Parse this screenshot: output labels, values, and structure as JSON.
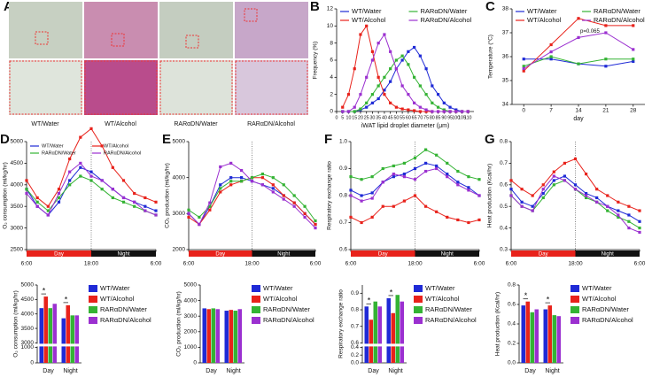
{
  "panel_a": {
    "panel": "A",
    "labels": [
      "WT/Water",
      "WT/Alcohol",
      "RARαDN/Water",
      "RARαDN/Alcohol"
    ]
  },
  "chart_data": [
    {
      "type": "line",
      "panel": "B",
      "x_label": "iWAT lipid droplet diameter (μm)",
      "y_label": "Frequency (%)",
      "x": [
        5,
        10,
        15,
        20,
        25,
        30,
        35,
        40,
        45,
        50,
        55,
        60,
        65,
        70,
        75,
        80,
        85,
        90,
        95,
        100,
        105,
        110
      ],
      "xlim": [
        0,
        115
      ],
      "ylim": [
        0,
        12
      ],
      "xticks": [
        0,
        5,
        10,
        15,
        20,
        25,
        30,
        35,
        40,
        45,
        50,
        55,
        60,
        65,
        70,
        75,
        80,
        85,
        90,
        95,
        100,
        105,
        110
      ],
      "yticks": [
        0,
        2,
        4,
        6,
        8,
        10,
        12
      ],
      "legend": "top",
      "series": [
        {
          "name": "WT/Water",
          "color": "#1f2ad6",
          "values": [
            0,
            0,
            0,
            0.2,
            0.5,
            1,
            1.5,
            2.5,
            3.5,
            5,
            6,
            7,
            7.5,
            6.5,
            5,
            3,
            2,
            1,
            0.5,
            0.2,
            0,
            0
          ]
        },
        {
          "name": "RARαDN/Water",
          "color": "#34b334",
          "values": [
            0,
            0,
            0,
            0.3,
            1,
            2,
            3,
            4,
            5,
            6,
            6.5,
            5.5,
            4,
            3,
            2,
            1,
            0.5,
            0.2,
            0,
            0,
            0,
            0
          ]
        },
        {
          "name": "WT/Alcohol",
          "color": "#e8221b",
          "values": [
            0.5,
            2,
            5,
            9,
            10,
            7,
            4,
            2,
            1,
            0.5,
            0.3,
            0.2,
            0.1,
            0,
            0,
            0,
            0,
            0,
            0,
            0,
            0,
            0
          ]
        },
        {
          "name": "RARαDN/Alcohol",
          "color": "#9b30d0",
          "values": [
            0,
            0,
            0.5,
            2,
            4,
            6,
            8,
            9,
            7,
            5,
            3,
            2,
            1,
            0.5,
            0.2,
            0,
            0,
            0,
            0,
            0,
            0,
            0
          ]
        }
      ]
    },
    {
      "type": "line",
      "panel": "C",
      "x_label": "day",
      "y_label": "Temperature (°C)",
      "x": [
        0,
        7,
        14,
        21,
        28
      ],
      "xlim": [
        -3,
        31
      ],
      "ylim": [
        34,
        38
      ],
      "xticks": [
        0,
        7,
        14,
        21,
        28
      ],
      "yticks": [
        34,
        35,
        36,
        37,
        38
      ],
      "legend": "top",
      "annotation": "p=0.065",
      "series": [
        {
          "name": "WT/Water",
          "color": "#1f2ad6",
          "values": [
            35.9,
            35.9,
            35.7,
            35.6,
            35.8
          ]
        },
        {
          "name": "RARαDN/Water",
          "color": "#34b334",
          "values": [
            35.6,
            36.0,
            35.7,
            35.9,
            35.9
          ]
        },
        {
          "name": "WT/Alcohol",
          "color": "#e8221b",
          "values": [
            35.4,
            36.5,
            37.6,
            37.3,
            37.3
          ]
        },
        {
          "name": "RARαDN/Alcohol",
          "color": "#9b30d0",
          "values": [
            35.5,
            36.2,
            36.8,
            37.0,
            36.3
          ]
        }
      ]
    },
    {
      "type": "line",
      "panel": "D",
      "y_label": "O₂ consumption (ml/kg/hr)",
      "x": [
        0,
        2,
        4,
        6,
        8,
        10,
        12,
        14,
        16,
        18,
        20,
        22,
        24
      ],
      "xlim": [
        0,
        24
      ],
      "ylim": [
        2500,
        5000
      ],
      "xticks": [
        {
          "value": 0,
          "label": "6:00"
        },
        {
          "value": 12,
          "label": "18:00"
        },
        {
          "value": 24,
          "label": "6:00"
        }
      ],
      "yticks": [
        2500,
        3000,
        3500,
        4000,
        4500,
        5000
      ],
      "legend": "inside",
      "phases": [
        {
          "label": "Day",
          "color": "#e8221b"
        },
        {
          "label": "Night",
          "color": "#111111"
        }
      ],
      "series": [
        {
          "name": "WT/Water",
          "color": "#1f2ad6",
          "values": [
            3900,
            3500,
            3300,
            3600,
            4100,
            4400,
            4300,
            4100,
            3900,
            3700,
            3600,
            3500,
            3400
          ]
        },
        {
          "name": "WT/Alcohol",
          "color": "#e8221b",
          "values": [
            4100,
            3700,
            3500,
            3900,
            4600,
            5100,
            5300,
            4900,
            4400,
            4100,
            3800,
            3700,
            3600
          ]
        },
        {
          "name": "RARαDN/Water",
          "color": "#34b334",
          "values": [
            3900,
            3600,
            3400,
            3700,
            4000,
            4200,
            4100,
            3900,
            3700,
            3600,
            3500,
            3400,
            3300
          ]
        },
        {
          "name": "RARαDN/Alcohol",
          "color": "#9b30d0",
          "values": [
            3800,
            3500,
            3300,
            3800,
            4300,
            4500,
            4200,
            4100,
            3900,
            3700,
            3600,
            3400,
            3300
          ]
        }
      ]
    },
    {
      "type": "line",
      "panel": "E",
      "y_label": "CO₂ production (ml/kg/hr)",
      "x": [
        0,
        2,
        4,
        6,
        8,
        10,
        12,
        14,
        16,
        18,
        20,
        22,
        24
      ],
      "xlim": [
        0,
        24
      ],
      "ylim": [
        2000,
        5000
      ],
      "xticks": [
        {
          "value": 0,
          "label": "6:00"
        },
        {
          "value": 12,
          "label": "18:00"
        },
        {
          "value": 24,
          "label": "6:00"
        }
      ],
      "yticks": [
        2000,
        3000,
        4000,
        5000
      ],
      "phases": [
        {
          "label": "Day",
          "color": "#e8221b"
        },
        {
          "label": "Night",
          "color": "#111111"
        }
      ],
      "series": [
        {
          "color": "#1f2ad6",
          "values": [
            3000,
            2700,
            3200,
            3800,
            4000,
            4000,
            3900,
            3800,
            3700,
            3500,
            3300,
            3000,
            2700
          ]
        },
        {
          "color": "#e8221b",
          "values": [
            2900,
            2700,
            3100,
            3600,
            3800,
            3900,
            4000,
            4000,
            3800,
            3500,
            3300,
            3000,
            2700
          ]
        },
        {
          "color": "#34b334",
          "values": [
            3100,
            2900,
            3200,
            3700,
            3900,
            3900,
            4000,
            4100,
            4000,
            3800,
            3500,
            3200,
            2800
          ]
        },
        {
          "color": "#9b30d0",
          "values": [
            3000,
            2700,
            3300,
            4300,
            4400,
            4200,
            3900,
            3800,
            3600,
            3400,
            3200,
            2900,
            2600
          ]
        }
      ]
    },
    {
      "type": "line",
      "panel": "F",
      "y_label": "Respiratory exchange ratio",
      "x": [
        0,
        2,
        4,
        6,
        8,
        10,
        12,
        14,
        16,
        18,
        20,
        22,
        24
      ],
      "xlim": [
        0,
        24
      ],
      "ylim": [
        0.6,
        1
      ],
      "xticks": [
        {
          "value": 0,
          "label": "6:00"
        },
        {
          "value": 12,
          "label": "18:00"
        },
        {
          "value": 24,
          "label": "6:00"
        }
      ],
      "yticks": [
        0.6,
        0.7,
        0.8,
        0.9,
        {
          "value": 1,
          "label": "1.0"
        }
      ],
      "phases": [
        {
          "label": "Day",
          "color": "#e8221b"
        },
        {
          "label": "Night",
          "color": "#111111"
        }
      ],
      "series": [
        {
          "color": "#1f2ad6",
          "values": [
            0.82,
            0.8,
            0.81,
            0.85,
            0.87,
            0.88,
            0.9,
            0.92,
            0.91,
            0.88,
            0.85,
            0.83,
            0.8
          ]
        },
        {
          "color": "#e8221b",
          "values": [
            0.72,
            0.7,
            0.72,
            0.76,
            0.76,
            0.78,
            0.8,
            0.76,
            0.74,
            0.72,
            0.71,
            0.7,
            0.71
          ]
        },
        {
          "color": "#34b334",
          "values": [
            0.87,
            0.86,
            0.87,
            0.9,
            0.91,
            0.92,
            0.94,
            0.97,
            0.95,
            0.92,
            0.89,
            0.87,
            0.86
          ]
        },
        {
          "color": "#9b30d0",
          "values": [
            0.8,
            0.78,
            0.79,
            0.85,
            0.88,
            0.87,
            0.86,
            0.89,
            0.9,
            0.87,
            0.84,
            0.82,
            0.8
          ]
        }
      ]
    },
    {
      "type": "line",
      "panel": "G",
      "y_label": "Heat production (Kcal/hr)",
      "x": [
        0,
        2,
        4,
        6,
        8,
        10,
        12,
        14,
        16,
        18,
        20,
        22,
        24
      ],
      "xlim": [
        0,
        24
      ],
      "ylim": [
        0.3,
        0.8
      ],
      "xticks": [
        {
          "value": 0,
          "label": "6:00"
        },
        {
          "value": 12,
          "label": "18:00"
        },
        {
          "value": 24,
          "label": "6:00"
        }
      ],
      "yticks": [
        0.3,
        0.4,
        0.5,
        0.6,
        0.7,
        0.8
      ],
      "phases": [
        {
          "label": "Day",
          "color": "#e8221b"
        },
        {
          "label": "Night",
          "color": "#111111"
        }
      ],
      "series": [
        {
          "color": "#1f2ad6",
          "values": [
            0.58,
            0.52,
            0.5,
            0.56,
            0.62,
            0.64,
            0.6,
            0.56,
            0.54,
            0.5,
            0.48,
            0.46,
            0.43
          ]
        },
        {
          "color": "#e8221b",
          "values": [
            0.62,
            0.58,
            0.55,
            0.6,
            0.66,
            0.7,
            0.72,
            0.65,
            0.58,
            0.55,
            0.52,
            0.5,
            0.48
          ]
        },
        {
          "color": "#34b334",
          "values": [
            0.55,
            0.5,
            0.48,
            0.54,
            0.6,
            0.62,
            0.58,
            0.54,
            0.52,
            0.48,
            0.45,
            0.43,
            0.4
          ]
        },
        {
          "color": "#9b30d0",
          "values": [
            0.55,
            0.5,
            0.48,
            0.58,
            0.64,
            0.62,
            0.58,
            0.55,
            0.52,
            0.5,
            0.46,
            0.4,
            0.38
          ]
        }
      ]
    },
    {
      "type": "bar",
      "y_label": "O₂ consumption (ml/kg/hr)",
      "categories": [
        "Day",
        "Night"
      ],
      "ylim": [
        0,
        5000
      ],
      "ybreak": [
        1000,
        3000
      ],
      "yticks": [
        0,
        1000,
        3000,
        3500,
        4000,
        4500,
        5000
      ],
      "legend": "right",
      "significance": [
        "*",
        "*"
      ],
      "series": [
        {
          "name": "WT/Water",
          "color": "#1f2ad6",
          "values": [
            4200,
            3850
          ]
        },
        {
          "name": "WT/Alcohol",
          "color": "#e8221b",
          "values": [
            4600,
            4300
          ]
        },
        {
          "name": "RARαDN/Water",
          "color": "#34b334",
          "values": [
            4200,
            3950
          ]
        },
        {
          "name": "RARαDN/Alcohol",
          "color": "#9b30d0",
          "values": [
            4350,
            3950
          ]
        }
      ]
    },
    {
      "type": "bar",
      "y_label": "CO₂ production (ml/kg/hr)",
      "categories": [
        "Day",
        "Night"
      ],
      "ylim": [
        0,
        5000
      ],
      "yticks": [
        0,
        1000,
        2000,
        3000,
        4000,
        5000
      ],
      "legend": "right",
      "series": [
        {
          "name": "WT/Water",
          "color": "#1f2ad6",
          "values": [
            3500,
            3350
          ]
        },
        {
          "name": "WT/Alcohol",
          "color": "#e8221b",
          "values": [
            3450,
            3400
          ]
        },
        {
          "name": "RARαDN/Water",
          "color": "#34b334",
          "values": [
            3500,
            3350
          ]
        },
        {
          "name": "RARαDN/Alcohol",
          "color": "#9b30d0",
          "values": [
            3450,
            3450
          ]
        }
      ]
    },
    {
      "type": "bar",
      "y_label": "Respiratory exchange ratio",
      "categories": [
        "Day",
        "Night"
      ],
      "ylim": [
        0,
        0.95
      ],
      "ybreak": [
        0.4,
        0.6
      ],
      "yticks": [
        {
          "value": 0,
          "label": "0.0"
        },
        0.2,
        0.4,
        0.6,
        0.7,
        0.8,
        0.9
      ],
      "legend": "right",
      "significance": [
        "*",
        "*"
      ],
      "series": [
        {
          "name": "WT/Water",
          "color": "#1f2ad6",
          "values": [
            0.82,
            0.87
          ]
        },
        {
          "name": "WT/Alcohol",
          "color": "#e8221b",
          "values": [
            0.74,
            0.78
          ]
        },
        {
          "name": "RARαDN/Water",
          "color": "#34b334",
          "values": [
            0.85,
            0.89
          ]
        },
        {
          "name": "RARαDN/Alcohol",
          "color": "#9b30d0",
          "values": [
            0.82,
            0.85
          ]
        }
      ]
    },
    {
      "type": "bar",
      "y_label": "Heat production (Kcal/hr)",
      "categories": [
        "Day",
        "Night"
      ],
      "ylim": [
        0,
        0.8
      ],
      "yticks": [
        {
          "value": 0,
          "label": "0.0"
        },
        0.2,
        0.4,
        0.6,
        0.8
      ],
      "legend": "right",
      "significance": [
        "*",
        "*"
      ],
      "series": [
        {
          "name": "WT/Water",
          "color": "#1f2ad6",
          "values": [
            0.59,
            0.55
          ]
        },
        {
          "name": "WT/Alcohol",
          "color": "#e8221b",
          "values": [
            0.63,
            0.59
          ]
        },
        {
          "name": "RARαDN/Water",
          "color": "#34b334",
          "values": [
            0.52,
            0.49
          ]
        },
        {
          "name": "RARαDN/Alcohol",
          "color": "#9b30d0",
          "values": [
            0.55,
            0.48
          ]
        }
      ]
    }
  ]
}
